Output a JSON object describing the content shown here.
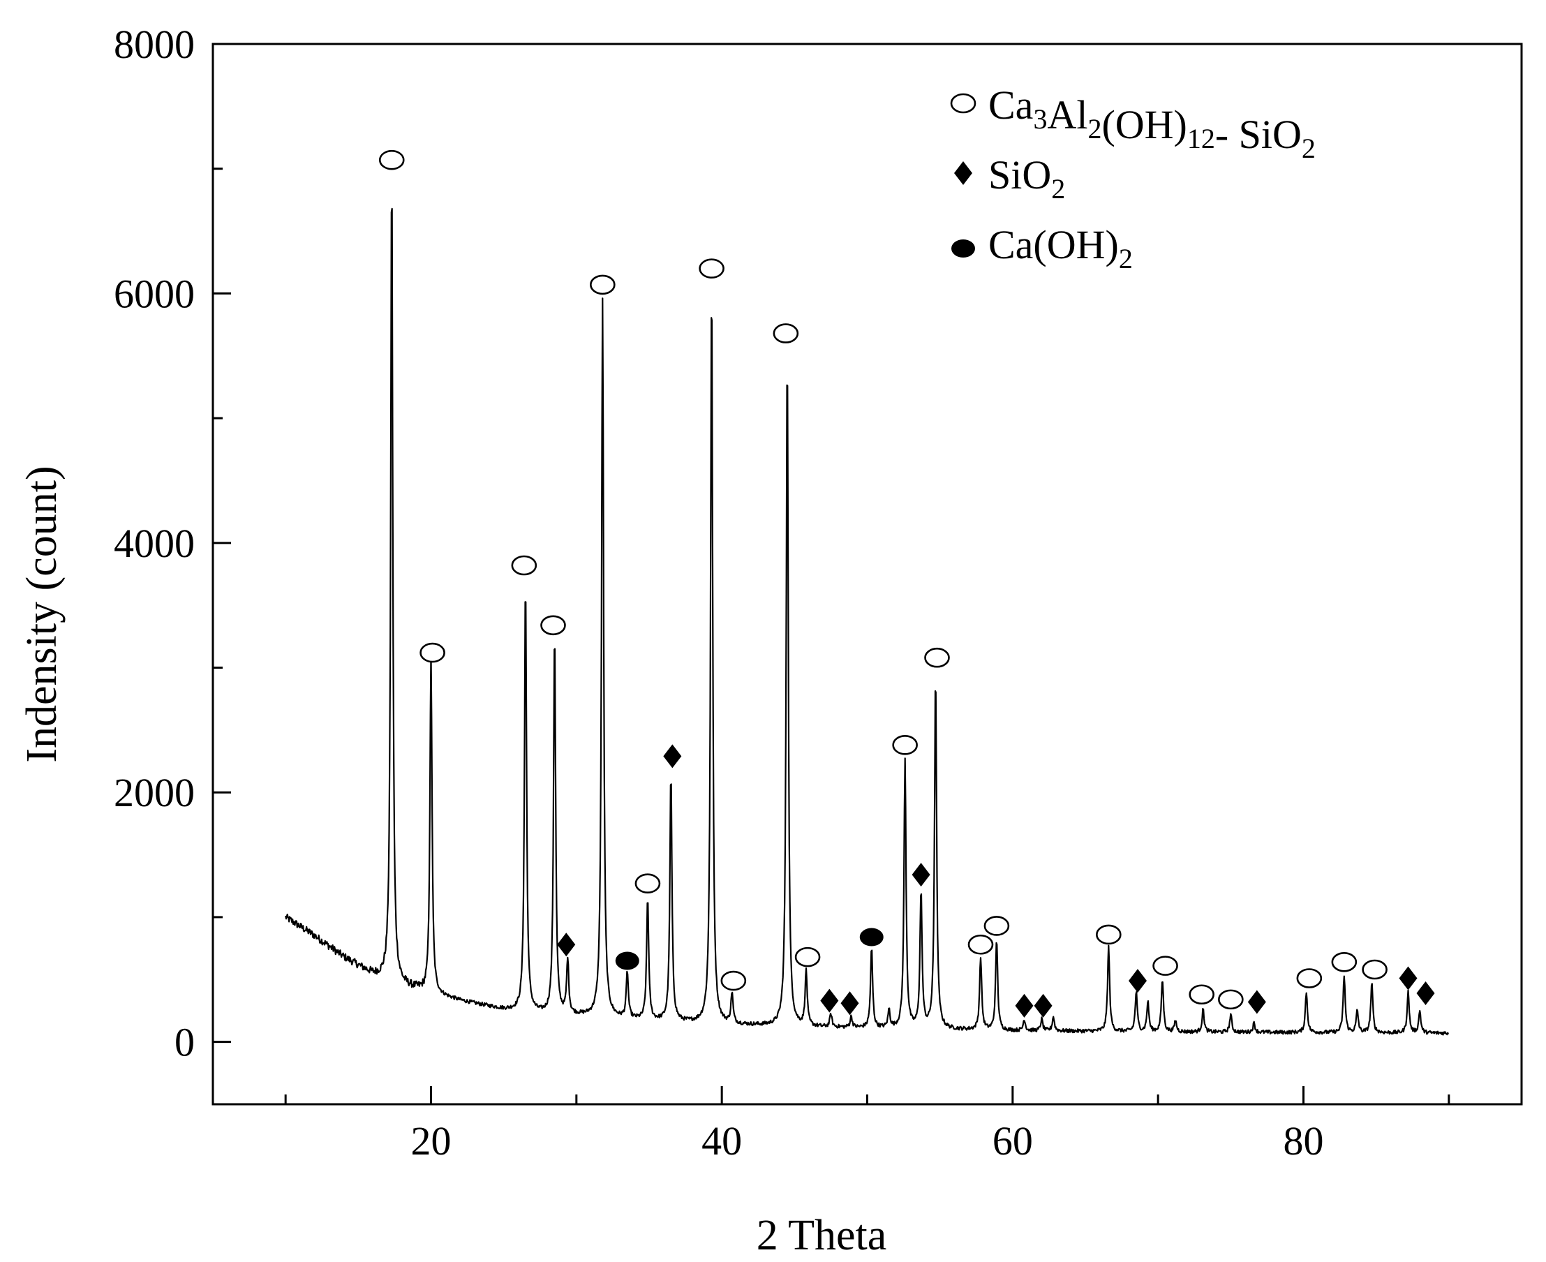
{
  "chart_data": {
    "type": "line",
    "xlabel": "2 Theta",
    "ylabel": "Indensity (count)",
    "xlim": [
      5,
      95
    ],
    "ylim": [
      -500,
      8000
    ],
    "x_ticks": [
      20,
      40,
      60,
      80
    ],
    "x_minor_ticks": [
      10,
      30,
      50,
      70,
      90
    ],
    "y_ticks": [
      0,
      2000,
      4000,
      6000,
      8000
    ],
    "y_minor_ticks": [
      1000,
      3000,
      5000,
      7000
    ],
    "grid": false,
    "legend": {
      "placement": "top-right",
      "entries": [
        {
          "marker": "open-circle",
          "parts": [
            {
              "t": "Ca"
            },
            {
              "t": "3",
              "sub": true
            },
            {
              "t": "Al"
            },
            {
              "t": "2",
              "sub": true
            },
            {
              "t": "(OH)"
            },
            {
              "t": "12",
              "sub": true
            },
            {
              "t": "- SiO"
            },
            {
              "t": "2",
              "sub": true
            }
          ]
        },
        {
          "marker": "diamond",
          "parts": [
            {
              "t": "SiO"
            },
            {
              "t": "2",
              "sub": true
            }
          ]
        },
        {
          "marker": "filled-circle",
          "parts": [
            {
              "t": "Ca(OH)"
            },
            {
              "t": "2",
              "sub": true
            }
          ]
        }
      ]
    },
    "baseline": [
      [
        10,
        1000
      ],
      [
        12,
        850
      ],
      [
        14,
        680
      ],
      [
        16,
        540
      ],
      [
        18,
        450
      ],
      [
        20,
        390
      ],
      [
        22,
        330
      ],
      [
        25,
        260
      ],
      [
        28,
        220
      ],
      [
        30,
        210
      ],
      [
        35,
        170
      ],
      [
        40,
        140
      ],
      [
        45,
        120
      ],
      [
        50,
        110
      ],
      [
        55,
        100
      ],
      [
        60,
        90
      ],
      [
        70,
        80
      ],
      [
        80,
        75
      ],
      [
        90,
        70
      ]
    ],
    "peaks": [
      {
        "x": 17.3,
        "y": 7000,
        "phase": "Ca3Al2(OH)12-SiO2"
      },
      {
        "x": 20.0,
        "y": 3100,
        "phase": "Ca3Al2(OH)12-SiO2"
      },
      {
        "x": 26.5,
        "y": 3700,
        "phase": "Ca3Al2(OH)12-SiO2"
      },
      {
        "x": 28.5,
        "y": 3300,
        "phase": "Ca3Al2(OH)12-SiO2"
      },
      {
        "x": 29.4,
        "y": 650,
        "phase": "SiO2"
      },
      {
        "x": 31.8,
        "y": 5950,
        "phase": "Ca3Al2(OH)12-SiO2"
      },
      {
        "x": 33.5,
        "y": 550,
        "phase": "Ca(OH)2"
      },
      {
        "x": 34.9,
        "y": 1150,
        "phase": "Ca3Al2(OH)12-SiO2"
      },
      {
        "x": 36.5,
        "y": 2150,
        "phase": "SiO2"
      },
      {
        "x": 39.3,
        "y": 6100,
        "phase": "Ca3Al2(OH)12-SiO2"
      },
      {
        "x": 40.7,
        "y": 380,
        "phase": "Ca3Al2(OH)12-SiO2"
      },
      {
        "x": 44.5,
        "y": 5550,
        "phase": "Ca3Al2(OH)12-SiO2"
      },
      {
        "x": 45.8,
        "y": 560,
        "phase": "Ca3Al2(OH)12-SiO2"
      },
      {
        "x": 47.5,
        "y": 220,
        "phase": "SiO2"
      },
      {
        "x": 48.9,
        "y": 200,
        "phase": "SiO2"
      },
      {
        "x": 50.3,
        "y": 750,
        "phase": "Ca(OH)2"
      },
      {
        "x": 51.5,
        "y": 250,
        "phase": ""
      },
      {
        "x": 52.6,
        "y": 2250,
        "phase": "Ca3Al2(OH)12-SiO2"
      },
      {
        "x": 53.7,
        "y": 1200,
        "phase": "SiO2"
      },
      {
        "x": 54.7,
        "y": 2950,
        "phase": "Ca3Al2(OH)12-SiO2"
      },
      {
        "x": 57.8,
        "y": 680,
        "phase": "Ca3Al2(OH)12-SiO2"
      },
      {
        "x": 58.9,
        "y": 820,
        "phase": "Ca3Al2(OH)12-SiO2"
      },
      {
        "x": 60.8,
        "y": 180,
        "phase": "SiO2"
      },
      {
        "x": 62.0,
        "y": 180,
        "phase": "SiO2"
      },
      {
        "x": 62.8,
        "y": 200,
        "phase": ""
      },
      {
        "x": 66.6,
        "y": 760,
        "phase": "Ca3Al2(OH)12-SiO2"
      },
      {
        "x": 68.5,
        "y": 400,
        "phase": "SiO2"
      },
      {
        "x": 69.3,
        "y": 320,
        "phase": ""
      },
      {
        "x": 70.3,
        "y": 500,
        "phase": "Ca3Al2(OH)12-SiO2"
      },
      {
        "x": 71.2,
        "y": 170,
        "phase": ""
      },
      {
        "x": 73.1,
        "y": 260,
        "phase": "Ca3Al2(OH)12-SiO2"
      },
      {
        "x": 75.0,
        "y": 220,
        "phase": "Ca3Al2(OH)12-SiO2"
      },
      {
        "x": 76.6,
        "y": 150,
        "phase": "SiO2"
      },
      {
        "x": 80.2,
        "y": 400,
        "phase": "Ca3Al2(OH)12-SiO2"
      },
      {
        "x": 82.8,
        "y": 530,
        "phase": "Ca3Al2(OH)12-SiO2"
      },
      {
        "x": 83.7,
        "y": 250,
        "phase": ""
      },
      {
        "x": 84.7,
        "y": 470,
        "phase": "Ca3Al2(OH)12-SiO2"
      },
      {
        "x": 87.2,
        "y": 400,
        "phase": "SiO2"
      },
      {
        "x": 88.0,
        "y": 250,
        "phase": "SiO2"
      }
    ],
    "markers": [
      {
        "type": "open-circle",
        "x": 17.3,
        "y": 7070
      },
      {
        "type": "open-circle",
        "x": 20.1,
        "y": 3120
      },
      {
        "type": "open-circle",
        "x": 26.4,
        "y": 3820
      },
      {
        "type": "open-circle",
        "x": 28.4,
        "y": 3340
      },
      {
        "type": "diamond",
        "x": 29.3,
        "y": 780
      },
      {
        "type": "open-circle",
        "x": 31.8,
        "y": 6070
      },
      {
        "type": "filled-circle",
        "x": 33.5,
        "y": 650
      },
      {
        "type": "open-circle",
        "x": 34.9,
        "y": 1270
      },
      {
        "type": "diamond",
        "x": 36.6,
        "y": 2290
      },
      {
        "type": "open-circle",
        "x": 39.3,
        "y": 6200
      },
      {
        "type": "open-circle",
        "x": 40.8,
        "y": 490
      },
      {
        "type": "open-circle",
        "x": 44.4,
        "y": 5680
      },
      {
        "type": "open-circle",
        "x": 45.9,
        "y": 680
      },
      {
        "type": "diamond",
        "x": 47.4,
        "y": 330
      },
      {
        "type": "diamond",
        "x": 48.8,
        "y": 310
      },
      {
        "type": "filled-circle",
        "x": 50.3,
        "y": 840
      },
      {
        "type": "open-circle",
        "x": 52.6,
        "y": 2380
      },
      {
        "type": "diamond",
        "x": 53.7,
        "y": 1340
      },
      {
        "type": "open-circle",
        "x": 54.8,
        "y": 3080
      },
      {
        "type": "open-circle",
        "x": 57.8,
        "y": 780
      },
      {
        "type": "open-circle",
        "x": 58.9,
        "y": 930
      },
      {
        "type": "diamond",
        "x": 60.8,
        "y": 290
      },
      {
        "type": "diamond",
        "x": 62.1,
        "y": 290
      },
      {
        "type": "open-circle",
        "x": 66.6,
        "y": 860
      },
      {
        "type": "diamond",
        "x": 68.6,
        "y": 490
      },
      {
        "type": "open-circle",
        "x": 70.5,
        "y": 610
      },
      {
        "type": "open-circle",
        "x": 73.0,
        "y": 380
      },
      {
        "type": "open-circle",
        "x": 75.0,
        "y": 340
      },
      {
        "type": "diamond",
        "x": 76.8,
        "y": 320
      },
      {
        "type": "open-circle",
        "x": 80.4,
        "y": 510
      },
      {
        "type": "open-circle",
        "x": 82.8,
        "y": 640
      },
      {
        "type": "open-circle",
        "x": 84.9,
        "y": 580
      },
      {
        "type": "diamond",
        "x": 87.2,
        "y": 510
      },
      {
        "type": "diamond",
        "x": 88.4,
        "y": 390
      }
    ]
  }
}
